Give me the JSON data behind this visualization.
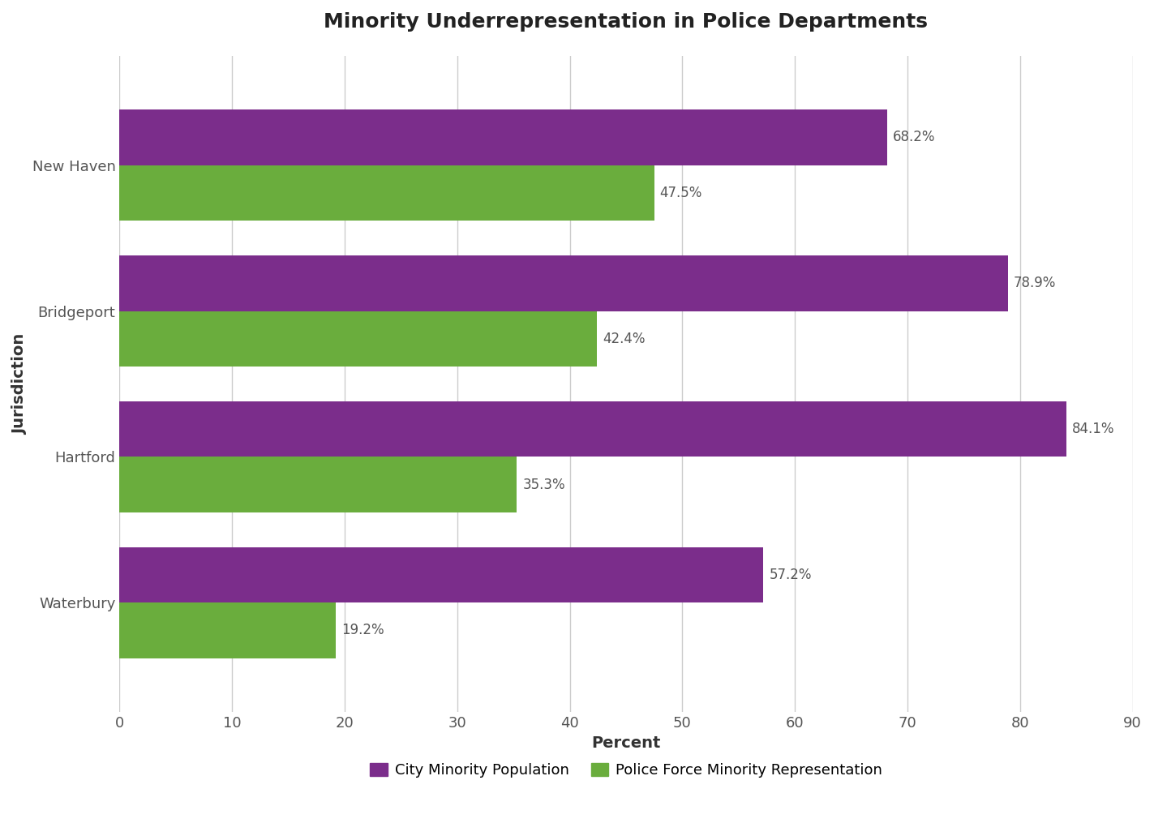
{
  "title": "Minority Underrepresentation in Police Departments",
  "xlabel": "Percent",
  "ylabel": "Jurisdiction",
  "categories": [
    "Waterbury",
    "Hartford",
    "Bridgeport",
    "New Haven"
  ],
  "city_minority_population": [
    57.2,
    84.1,
    78.9,
    68.2
  ],
  "police_force_minority": [
    19.2,
    35.3,
    42.4,
    47.5
  ],
  "city_color": "#7B2D8B",
  "police_color": "#6AAD3D",
  "background_color": "#FFFFFF",
  "plot_bg_color": "#FFFFFF",
  "xlim": [
    0,
    90
  ],
  "xticks": [
    0,
    10,
    20,
    30,
    40,
    50,
    60,
    70,
    80,
    90
  ],
  "bar_height": 0.38,
  "title_fontsize": 18,
  "label_fontsize": 14,
  "tick_fontsize": 13,
  "annotation_fontsize": 12,
  "legend_labels": [
    "City Minority Population",
    "Police Force Minority Representation"
  ],
  "grid_color": "#CCCCCC",
  "legend_color_city": "#7B2D8B",
  "legend_color_police": "#6AAD3D"
}
